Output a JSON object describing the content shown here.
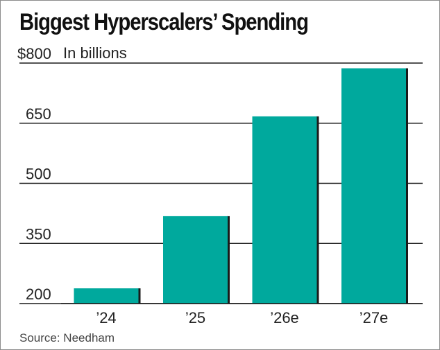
{
  "chart_data": {
    "type": "bar",
    "title": "Biggest Hyperscalers’ Spending",
    "unit_label": "In billions",
    "categories": [
      "’24",
      "’25",
      "’26e",
      "’27e"
    ],
    "values": [
      238,
      418,
      667,
      787
    ],
    "ylim": [
      200,
      800
    ],
    "yticks": [
      200,
      350,
      500,
      650,
      800
    ],
    "ytick_labels": [
      "200",
      "350",
      "500",
      "650",
      "$800"
    ],
    "bar_color": "#00a99d",
    "bar_shadow_color": "#1a1a1a",
    "grid": true,
    "source": "Source: Needham"
  }
}
